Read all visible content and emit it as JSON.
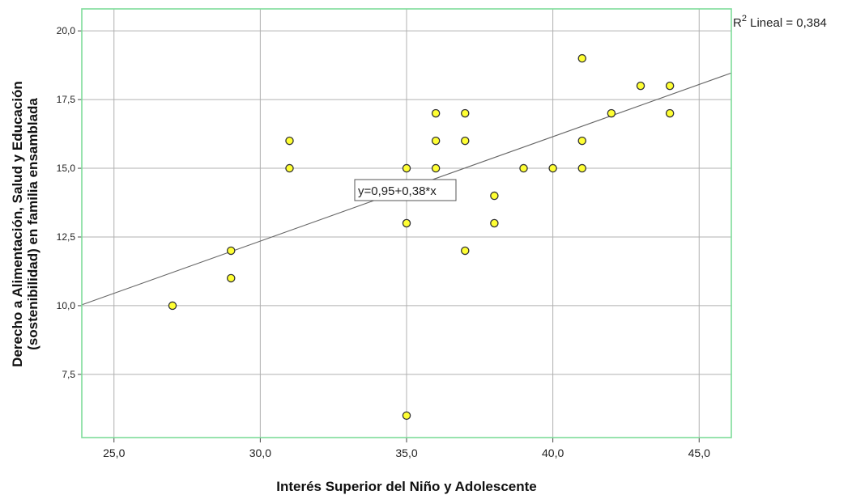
{
  "chart_data": {
    "type": "scatter",
    "xlabel": "Interés Superior del Niño y Adolescente",
    "ylabel_line1": "Derecho a Alimentación, Salud y Educación",
    "ylabel_line2": "(sostenibilidad) en familia ensamblada",
    "xlim": [
      23.9,
      46.1
    ],
    "ylim": [
      5.2,
      20.8
    ],
    "xticks": [
      "25,0",
      "30,0",
      "35,0",
      "40,0",
      "45,0"
    ],
    "xtick_values": [
      25,
      30,
      35,
      40,
      45
    ],
    "yticks": [
      "7,5",
      "10,0",
      "12,5",
      "15,0",
      "17,5",
      "20,0"
    ],
    "ytick_values": [
      7.5,
      10,
      12.5,
      15,
      17.5,
      20
    ],
    "grid": true,
    "points": [
      {
        "x": 27,
        "y": 10
      },
      {
        "x": 29,
        "y": 12
      },
      {
        "x": 29,
        "y": 11
      },
      {
        "x": 31,
        "y": 16
      },
      {
        "x": 31,
        "y": 15
      },
      {
        "x": 35,
        "y": 15
      },
      {
        "x": 35,
        "y": 13
      },
      {
        "x": 35,
        "y": 6
      },
      {
        "x": 36,
        "y": 17
      },
      {
        "x": 36,
        "y": 16
      },
      {
        "x": 36,
        "y": 15
      },
      {
        "x": 37,
        "y": 17
      },
      {
        "x": 37,
        "y": 16
      },
      {
        "x": 37,
        "y": 12
      },
      {
        "x": 38,
        "y": 14
      },
      {
        "x": 38,
        "y": 13
      },
      {
        "x": 39,
        "y": 15
      },
      {
        "x": 40,
        "y": 15
      },
      {
        "x": 41,
        "y": 19
      },
      {
        "x": 41,
        "y": 16
      },
      {
        "x": 41,
        "y": 15
      },
      {
        "x": 42,
        "y": 17
      },
      {
        "x": 43,
        "y": 18
      },
      {
        "x": 44,
        "y": 18
      },
      {
        "x": 44,
        "y": 17
      }
    ],
    "fit_line": {
      "intercept": 0.95,
      "slope": 0.38,
      "equation_label": "y=0,95+0,38*x"
    },
    "r2_label_prefix": "R",
    "r2_label_sup": "2",
    "r2_label_suffix": " Lineal = 0,384",
    "colors": {
      "point_fill": "#ffff33",
      "point_stroke": "#333333",
      "frame": "#7fdc9a",
      "grid": "#b0b0b0",
      "fit_line": "#666666"
    }
  }
}
